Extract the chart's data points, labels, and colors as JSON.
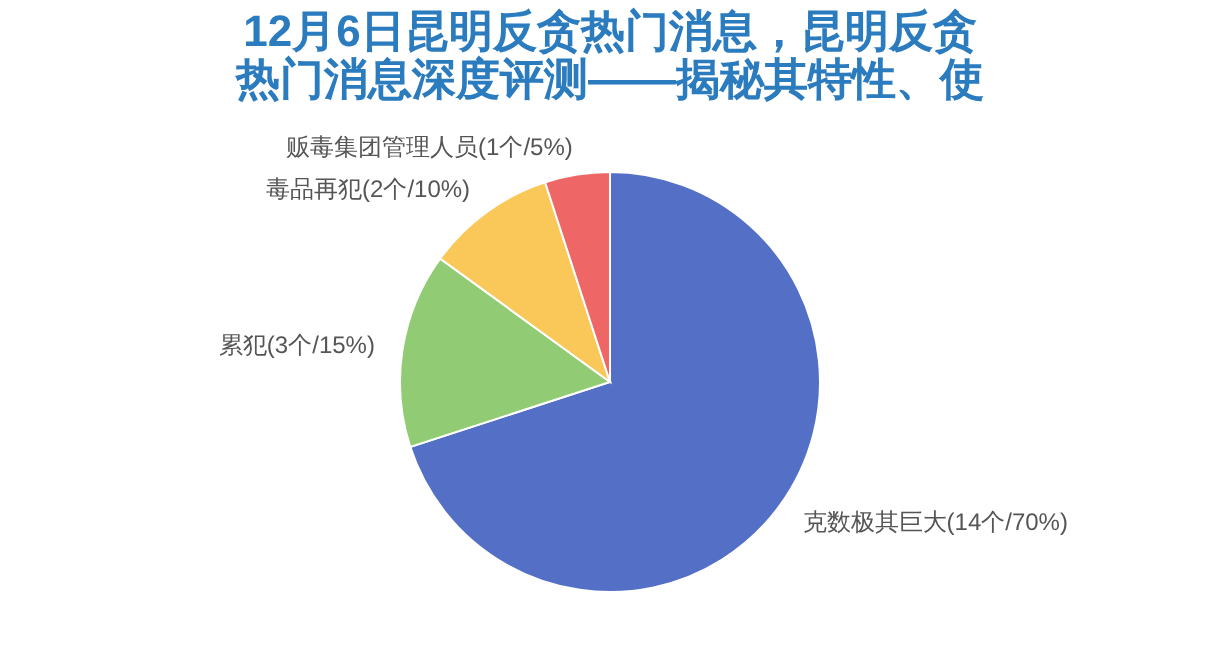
{
  "chart_data": {
    "type": "pie",
    "title": "12月6日昆明反贪热门消息，昆明反贪热门消息深度评测——揭秘其特性、使",
    "categories": [
      "克数极其巨大",
      "累犯",
      "毒品再犯",
      "贩毒集团管理人员"
    ],
    "values": [
      14,
      3,
      2,
      1
    ],
    "value_labels": [
      "(14个/70%)",
      "(3个/15%)",
      "(2个/10%)",
      "(1个/5%)"
    ],
    "colors": [
      "#5470c6",
      "#91cc75",
      "#fac858",
      "#ee6666"
    ],
    "legend": false
  }
}
